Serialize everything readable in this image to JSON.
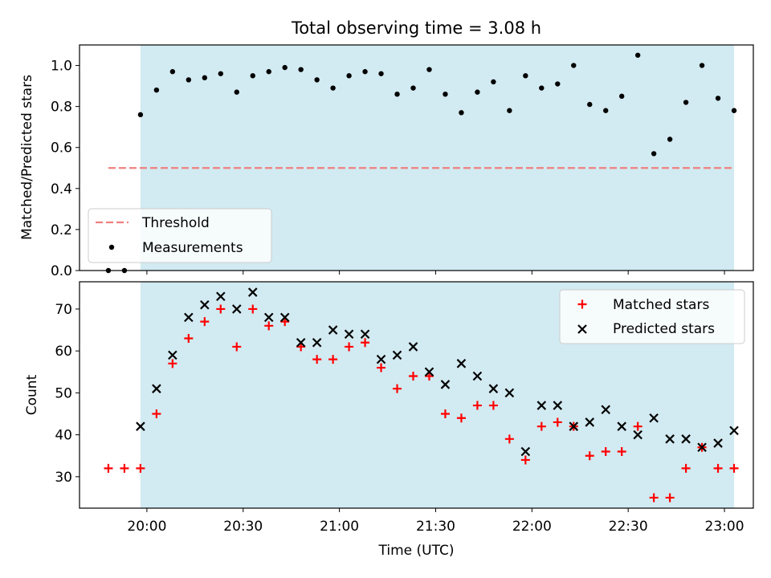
{
  "title": "Total observing time = 3.08 h",
  "colors": {
    "shade": "#add8e6",
    "threshold": "#f08080",
    "measurement": "#000000",
    "matched": "#ff0000",
    "predicted": "#000000"
  },
  "chart_data": [
    {
      "type": "scatter",
      "ylabel": "Matched/Predicted stars",
      "ylim": [
        0.0,
        1.1
      ],
      "yticks": [
        "0.0",
        "0.2",
        "0.4",
        "0.6",
        "0.8",
        "1.0"
      ],
      "observing_window": [
        "19:58",
        "23:03"
      ],
      "threshold": {
        "name": "Threshold",
        "value": 0.5,
        "x": [
          "19:48",
          "23:03"
        ]
      },
      "legend": {
        "placement": "lower-left",
        "entries": [
          "Threshold",
          "Measurements"
        ]
      },
      "series": [
        {
          "name": "Measurements",
          "x": [
            "19:48",
            "19:53",
            "19:58",
            "20:03",
            "20:08",
            "20:13",
            "20:18",
            "20:23",
            "20:28",
            "20:33",
            "20:38",
            "20:43",
            "20:48",
            "20:53",
            "20:58",
            "21:03",
            "21:08",
            "21:13",
            "21:18",
            "21:23",
            "21:28",
            "21:33",
            "21:38",
            "21:43",
            "21:48",
            "21:53",
            "21:58",
            "22:03",
            "22:08",
            "22:13",
            "22:18",
            "22:23",
            "22:28",
            "22:33",
            "22:38",
            "22:43",
            "22:48",
            "22:53",
            "22:58",
            "23:03"
          ],
          "y": [
            0.0,
            0.0,
            0.76,
            0.88,
            0.97,
            0.93,
            0.94,
            0.96,
            0.87,
            0.95,
            0.97,
            0.99,
            0.98,
            0.93,
            0.89,
            0.95,
            0.97,
            0.96,
            0.86,
            0.89,
            0.98,
            0.86,
            0.77,
            0.87,
            0.92,
            0.78,
            0.95,
            0.89,
            0.91,
            1.0,
            0.81,
            0.78,
            0.85,
            1.05,
            0.57,
            0.64,
            0.82,
            1.0,
            0.84,
            0.78
          ]
        }
      ]
    },
    {
      "type": "scatter",
      "xlabel": "Time (UTC)",
      "ylabel": "Count",
      "ylim": [
        22.5,
        76.5
      ],
      "xlim": [
        "19:39",
        "23:09"
      ],
      "xticks": [
        "20:00",
        "20:30",
        "21:00",
        "21:30",
        "22:00",
        "22:30",
        "23:00"
      ],
      "yticks": [
        "30",
        "40",
        "50",
        "60",
        "70"
      ],
      "legend": {
        "placement": "upper-right",
        "entries": [
          "Matched stars",
          "Predicted stars"
        ]
      },
      "series": [
        {
          "name": "Matched stars",
          "marker": "+",
          "x": [
            "19:48",
            "19:53",
            "19:58",
            "20:03",
            "20:08",
            "20:13",
            "20:18",
            "20:23",
            "20:28",
            "20:33",
            "20:38",
            "20:43",
            "20:48",
            "20:53",
            "20:58",
            "21:03",
            "21:08",
            "21:13",
            "21:18",
            "21:23",
            "21:28",
            "21:33",
            "21:38",
            "21:43",
            "21:48",
            "21:53",
            "21:58",
            "22:03",
            "22:08",
            "22:13",
            "22:18",
            "22:23",
            "22:28",
            "22:33",
            "22:38",
            "22:43",
            "22:48",
            "22:53",
            "22:58",
            "23:03"
          ],
          "y": [
            32,
            32,
            32,
            45,
            57,
            63,
            67,
            70,
            61,
            70,
            66,
            67,
            61,
            58,
            58,
            61,
            62,
            56,
            51,
            54,
            54,
            45,
            44,
            47,
            47,
            39,
            34,
            42,
            43,
            42,
            35,
            36,
            36,
            42,
            25,
            25,
            32,
            37,
            32,
            32
          ]
        },
        {
          "name": "Predicted stars",
          "marker": "x",
          "x": [
            "19:58",
            "20:03",
            "20:08",
            "20:13",
            "20:18",
            "20:23",
            "20:28",
            "20:33",
            "20:38",
            "20:43",
            "20:48",
            "20:53",
            "20:58",
            "21:03",
            "21:08",
            "21:13",
            "21:18",
            "21:23",
            "21:28",
            "21:33",
            "21:38",
            "21:43",
            "21:48",
            "21:53",
            "21:58",
            "22:03",
            "22:08",
            "22:13",
            "22:18",
            "22:23",
            "22:28",
            "22:33",
            "22:38",
            "22:43",
            "22:48",
            "22:53",
            "22:58",
            "23:03"
          ],
          "y": [
            42,
            51,
            59,
            68,
            71,
            73,
            70,
            74,
            68,
            68,
            62,
            62,
            65,
            64,
            64,
            58,
            59,
            61,
            55,
            52,
            57,
            54,
            51,
            50,
            36,
            47,
            47,
            42,
            43,
            46,
            42,
            40,
            44,
            39,
            39,
            37,
            38,
            41
          ]
        }
      ]
    }
  ]
}
